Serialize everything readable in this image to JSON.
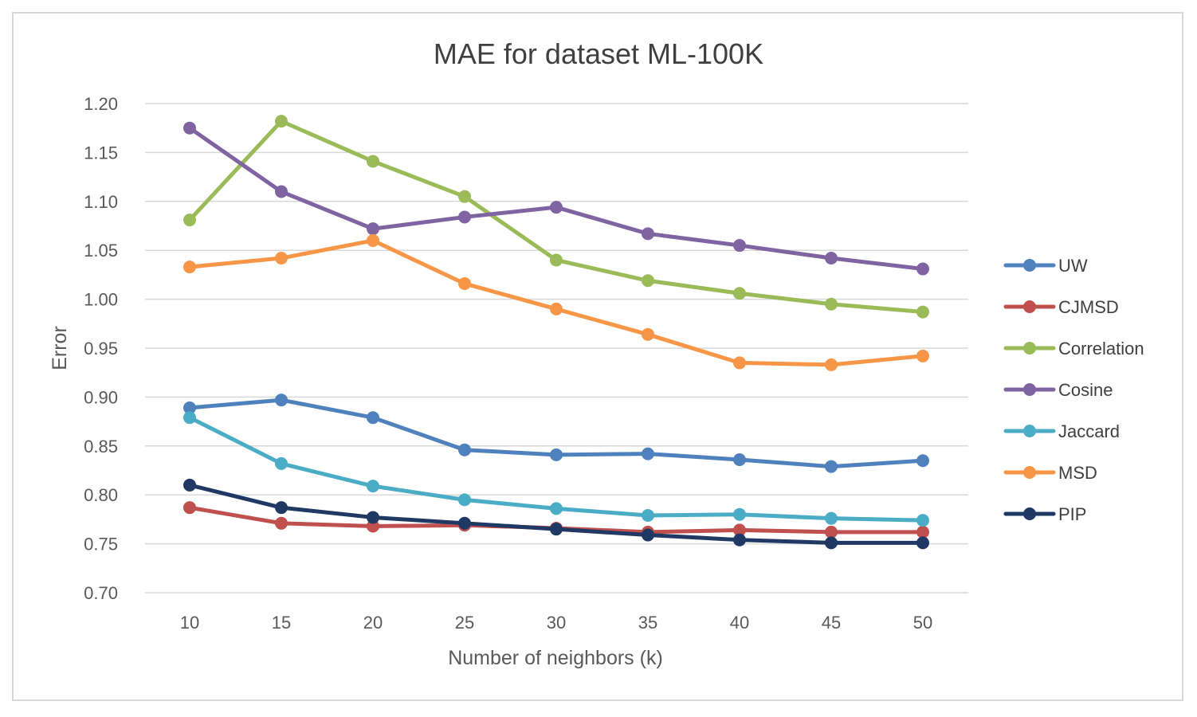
{
  "chart_data": {
    "type": "line",
    "title": "MAE for dataset ML-100K",
    "xlabel": "Number of neighbors (k)",
    "ylabel": "Error",
    "categories": [
      "10",
      "15",
      "20",
      "25",
      "30",
      "35",
      "40",
      "45",
      "50"
    ],
    "ylim": [
      0.7,
      1.2
    ],
    "yticks": [
      "0.70",
      "0.75",
      "0.80",
      "0.85",
      "0.90",
      "0.95",
      "1.00",
      "1.05",
      "1.10",
      "1.15",
      "1.20"
    ],
    "grid": true,
    "legend_position": "right",
    "series": [
      {
        "name": "UW",
        "color": "#4f81bd",
        "values": [
          0.889,
          0.897,
          0.879,
          0.846,
          0.841,
          0.842,
          0.836,
          0.829,
          0.835
        ]
      },
      {
        "name": "CJMSD",
        "color": "#c0504d",
        "values": [
          0.787,
          0.771,
          0.768,
          0.769,
          0.766,
          0.762,
          0.764,
          0.762,
          0.762
        ]
      },
      {
        "name": "Correlation",
        "color": "#9bbb59",
        "values": [
          1.081,
          1.182,
          1.141,
          1.105,
          1.04,
          1.019,
          1.006,
          0.995,
          0.987
        ]
      },
      {
        "name": "Cosine",
        "color": "#8064a2",
        "values": [
          1.175,
          1.11,
          1.072,
          1.084,
          1.094,
          1.067,
          1.055,
          1.042,
          1.031
        ]
      },
      {
        "name": "Jaccard",
        "color": "#4bacc6",
        "values": [
          0.879,
          0.832,
          0.809,
          0.795,
          0.786,
          0.779,
          0.78,
          0.776,
          0.774
        ]
      },
      {
        "name": "MSD",
        "color": "#f79646",
        "values": [
          1.033,
          1.042,
          1.06,
          1.016,
          0.99,
          0.964,
          0.935,
          0.933,
          0.942
        ]
      },
      {
        "name": "PIP",
        "color": "#1f3864",
        "values": [
          0.81,
          0.787,
          0.777,
          0.771,
          0.765,
          0.759,
          0.754,
          0.751,
          0.751
        ]
      }
    ]
  }
}
